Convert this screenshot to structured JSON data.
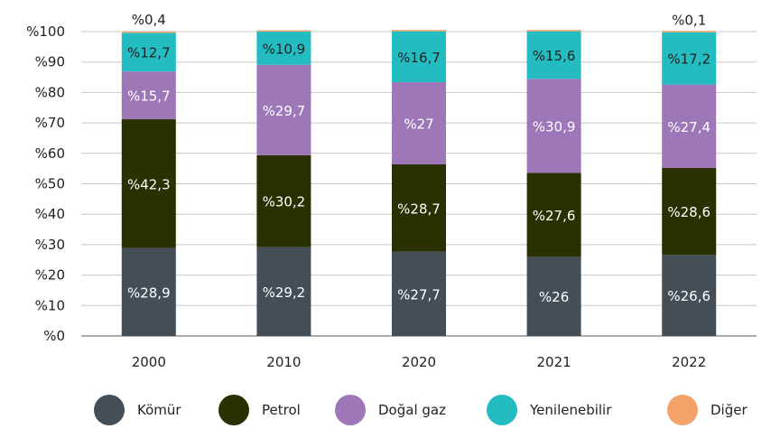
{
  "chart_data": {
    "type": "bar",
    "stacked": true,
    "categories": [
      "2000",
      "2010",
      "2020",
      "2021",
      "2022"
    ],
    "ylim": [
      0,
      100
    ],
    "yticks": [
      "%0",
      "%10",
      "%20",
      "%30",
      "%40",
      "%50",
      "%60",
      "%70",
      "%80",
      "%90",
      "%100"
    ],
    "grid": true,
    "legend_position": "bottom",
    "series": [
      {
        "name": "Kömür",
        "color": "#434e57",
        "values": [
          28.9,
          29.2,
          27.7,
          26.0,
          26.6
        ],
        "labels": [
          "%28,9",
          "%29,2",
          "%27,7",
          "%26",
          "%26,6"
        ],
        "label_color": "#ffffff"
      },
      {
        "name": "Petrol",
        "color": "#2b3001",
        "values": [
          42.3,
          30.2,
          28.7,
          27.6,
          28.6
        ],
        "labels": [
          "%42,3",
          "%30,2",
          "%28,7",
          "%27,6",
          "%28,6"
        ],
        "label_color": "#ffffff"
      },
      {
        "name": "Doğal gaz",
        "color": "#9e77b8",
        "values": [
          15.7,
          29.7,
          27.0,
          30.9,
          27.4
        ],
        "labels": [
          "%15,7",
          "%29,7",
          "%27",
          "%30,9",
          "%27,4"
        ],
        "label_color": "#ffffff"
      },
      {
        "name": "Yenilenebilir",
        "color": "#22bcc1",
        "values": [
          12.7,
          10.9,
          16.7,
          15.6,
          17.2
        ],
        "labels": [
          "%12,7",
          "%10,9",
          "%16,7",
          "%15,6",
          "%17,2"
        ],
        "label_color": "#222222"
      },
      {
        "name": "Diğer",
        "color": "#f4a46b",
        "values": [
          0.4,
          0.1,
          0.1,
          0.1,
          0.1
        ],
        "labels": [
          "%0,4",
          "",
          "",
          "",
          "%0,1"
        ],
        "label_color": "#222222"
      }
    ]
  }
}
